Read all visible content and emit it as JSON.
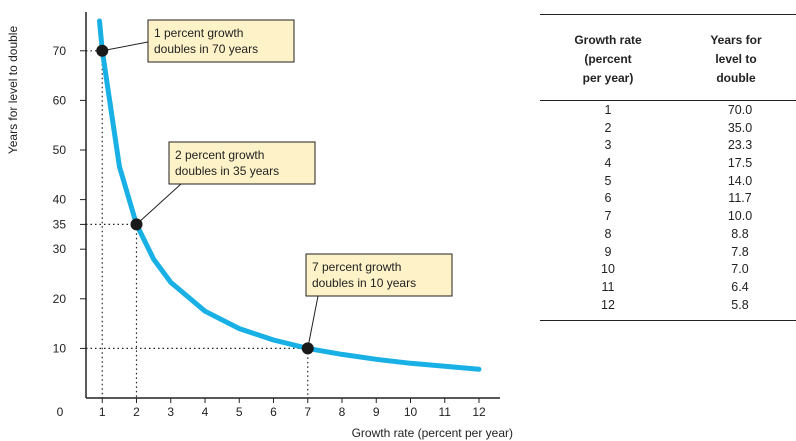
{
  "chart_data": [
    {
      "type": "line",
      "xlabel": "Growth rate (percent per year)",
      "ylabel": "Years for level to double",
      "x_ticks": [
        "0",
        "1",
        "2",
        "3",
        "4",
        "5",
        "6",
        "7",
        "8",
        "9",
        "10",
        "11",
        "12"
      ],
      "y_ticks": [
        "10",
        "20",
        "30",
        "35",
        "40",
        "50",
        "60",
        "70"
      ],
      "xlim": [
        0,
        12.5
      ],
      "ylim": [
        0,
        76
      ],
      "grid": false,
      "series": [
        {
          "x": [
            0.92,
            1,
            1.5,
            2,
            2.5,
            3,
            4,
            5,
            6,
            7,
            8,
            9,
            10,
            11,
            12
          ],
          "y": [
            76,
            70,
            46.7,
            35,
            28,
            23.3,
            17.5,
            14,
            11.7,
            10,
            8.8,
            7.8,
            7,
            6.4,
            5.8
          ],
          "color": "#19b0e6"
        }
      ],
      "highlighted_points": [
        {
          "x": 1,
          "y": 70,
          "label_line1": "1 percent growth",
          "label_line2": "doubles in 70 years"
        },
        {
          "x": 2,
          "y": 35,
          "label_line1": "2 percent growth",
          "label_line2": "doubles in 35 years"
        },
        {
          "x": 7,
          "y": 10,
          "label_line1": "7 percent growth",
          "label_line2": "doubles in 10 years"
        }
      ]
    },
    {
      "type": "table",
      "columns": [
        "Growth rate\n(percent\nper year)",
        "Years for\nlevel to\ndouble"
      ],
      "rows": [
        [
          "1",
          "70.0"
        ],
        [
          "2",
          "35.0"
        ],
        [
          "3",
          "23.3"
        ],
        [
          "4",
          "17.5"
        ],
        [
          "5",
          "14.0"
        ],
        [
          "6",
          "11.7"
        ],
        [
          "7",
          "10.0"
        ],
        [
          "8",
          "8.8"
        ],
        [
          "9",
          "7.8"
        ],
        [
          "10",
          "7.0"
        ],
        [
          "11",
          "6.4"
        ],
        [
          "12",
          "5.8"
        ]
      ]
    }
  ],
  "colors": {
    "curve": "#19b0e6",
    "annotation_box": "#fdf2c8",
    "ink": "#222222"
  }
}
